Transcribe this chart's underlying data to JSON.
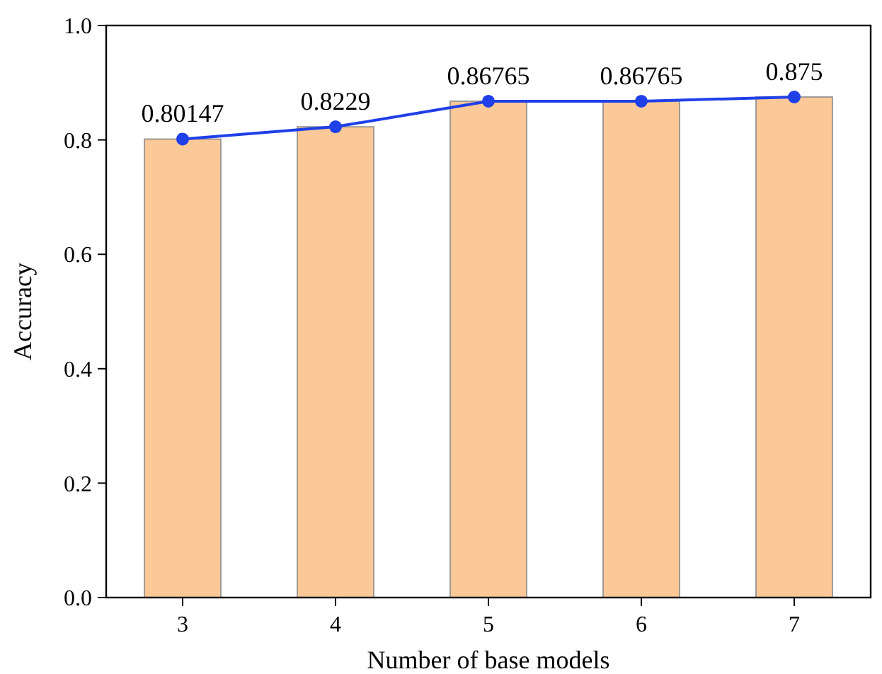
{
  "chart_data": {
    "type": "bar",
    "xlabel": "Number of base models",
    "ylabel": "Accuracy",
    "categories": [
      "3",
      "4",
      "5",
      "6",
      "7"
    ],
    "ylim": [
      0,
      1
    ],
    "yticks": [
      {
        "value": 0,
        "label": "0.0"
      },
      {
        "value": 0.2,
        "label": "0.2"
      },
      {
        "value": 0.4,
        "label": "0.4"
      },
      {
        "value": 0.6,
        "label": "0.6"
      },
      {
        "value": 0.8,
        "label": "0.8"
      },
      {
        "value": 1,
        "label": "1.0"
      }
    ],
    "series": [
      {
        "color": "#fbc898",
        "values": [
          0.80147,
          0.8229,
          0.86765,
          0.86765,
          0.875
        ]
      },
      {
        "type": "line",
        "color": "#1f3fe8",
        "marker": "circle",
        "values": [
          0.80147,
          0.8229,
          0.86765,
          0.86765,
          0.875
        ],
        "value_labels": [
          "0.80147",
          "0.8229",
          "0.86765",
          "0.86765",
          "0.875"
        ]
      }
    ]
  }
}
